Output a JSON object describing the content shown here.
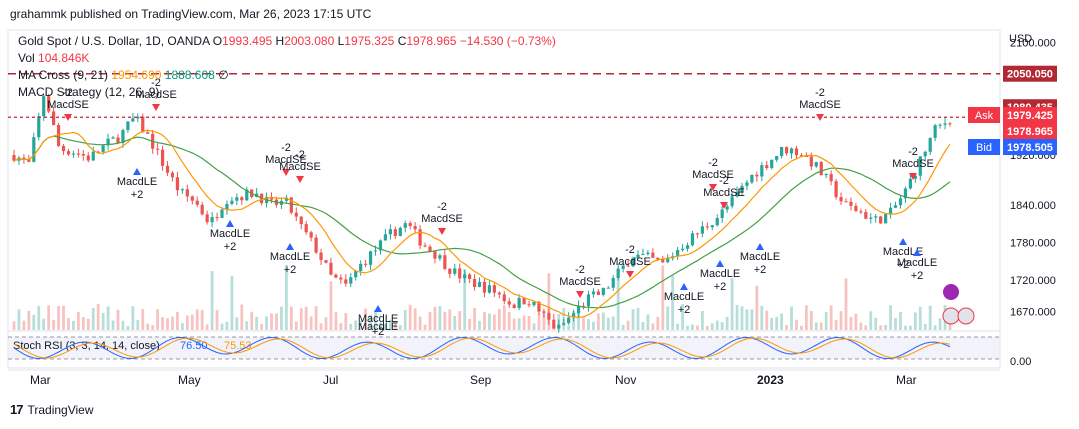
{
  "header": {
    "published_by": "grahammk published on TradingView.com, Mar 26, 2023 17:15 UTC"
  },
  "legend": {
    "symbol": "Gold Spot / U.S. Dollar, 1D, OANDA",
    "o_label": "O",
    "o_value": "1993.495",
    "h_label": "H",
    "h_value": "2003.080",
    "l_label": "L",
    "l_value": "1975.325",
    "c_label": "C",
    "c_value": "1978.965",
    "change": "−14.530 (−0.73%)",
    "vol_label": "Vol",
    "vol_value": "104.846K",
    "ma_label": "MA Cross (9, 21)",
    "ma_fast": "1954.690",
    "ma_slow": "1888.608",
    "ma_extra": "∅",
    "macd_label": "MACD Strategy (12, 26, 9)",
    "stoch_label": "Stoch RSI (3, 3, 14, 14, close)",
    "stoch_k": "76.50",
    "stoch_d": "75.53"
  },
  "price_axis": {
    "currency": "USD",
    "ticks": [
      "2100.000",
      "1920.000",
      "1840.000",
      "1780.000",
      "1720.000",
      "1670.000"
    ],
    "tag_2050": "2050.050",
    "tag_1980": "1980.435",
    "ask_label": "Ask",
    "ask_value": "1979.425",
    "last_value": "1978.965",
    "bid_label": "Bid",
    "bid_value": "1978.505",
    "stoch_tick": "0.00"
  },
  "time_axis": [
    "Mar",
    "May",
    "Jul",
    "Sep",
    "Nov",
    "2023",
    "Mar"
  ],
  "footer": {
    "brand": "TradingView"
  },
  "colors": {
    "up": "#26a69a",
    "down": "#ef5350",
    "fast_ma": "#ff9800",
    "slow_ma": "#43a047",
    "macd_le": "#2962ff",
    "macd_se": "#f23645"
  },
  "chart_data": {
    "type": "candlestick",
    "title": "Gold Spot / U.S. Dollar, 1D, OANDA",
    "ylim": [
      1640,
      2120
    ],
    "x_labels": [
      "Mar",
      "May",
      "Jul",
      "Sep",
      "Nov",
      "2023",
      "Mar"
    ],
    "close_path": [
      1920,
      1905,
      2020,
      1930,
      1925,
      1915,
      1935,
      1950,
      1980,
      1945,
      1900,
      1860,
      1845,
      1810,
      1850,
      1855,
      1860,
      1840,
      1845,
      1805,
      1770,
      1725,
      1710,
      1745,
      1770,
      1795,
      1810,
      1780,
      1760,
      1735,
      1720,
      1710,
      1700,
      1680,
      1690,
      1665,
      1640,
      1665,
      1690,
      1700,
      1730,
      1760,
      1755,
      1745,
      1770,
      1790,
      1810,
      1830,
      1860,
      1890,
      1910,
      1930,
      1925,
      1905,
      1875,
      1840,
      1830,
      1815,
      1825,
      1860,
      1910,
      1960,
      1978
    ],
    "reference_levels": [
      2050.05,
      1980.435
    ],
    "signals": {
      "macd_se_label": "MacdSE",
      "macd_le_label": "MacdLE",
      "minus2": "-2",
      "plus2": "+2",
      "macd_le_cut": "MacdLE"
    }
  }
}
